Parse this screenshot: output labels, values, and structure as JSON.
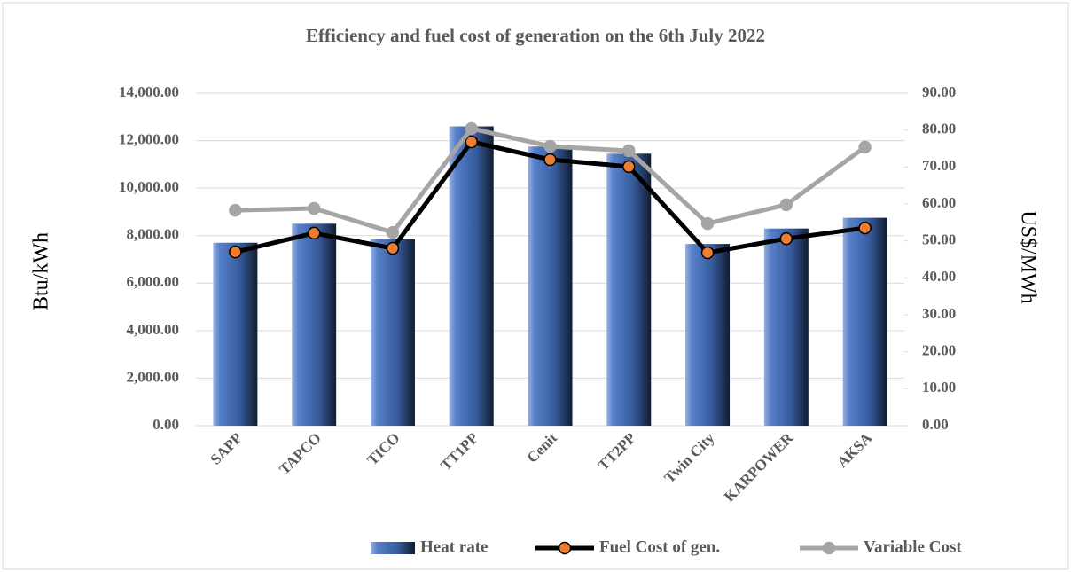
{
  "chart_data": {
    "type": "bar",
    "title": "Efficiency and fuel cost of generation on the 6th July 2022",
    "y_label": "Btu/kWh",
    "y2_label": "US$/MWh",
    "categories": [
      "SAPP",
      "TAPCO",
      "TICO",
      "TT1PP",
      "Cenit",
      "TT2PP",
      "Twin City",
      "KARPOWER",
      "AKSA"
    ],
    "series": [
      {
        "name": "Heat rate",
        "type": "bar",
        "color": "#4472c4",
        "values": [
          7700,
          8500,
          7850,
          12600,
          11750,
          11450,
          7650,
          8300,
          8750
        ]
      },
      {
        "name": "Fuel Cost of gen.",
        "type": "line",
        "axis": "y2",
        "color": "#000000",
        "marker_color": "#ed7d31",
        "values": [
          47.0,
          52.1,
          48.0,
          76.8,
          72.0,
          70.1,
          46.8,
          50.6,
          53.5
        ]
      },
      {
        "name": "Variable Cost",
        "type": "line",
        "axis": "y2",
        "color": "#a5a5a5",
        "marker_color": "#a5a5a5",
        "values": [
          58.3,
          58.8,
          52.3,
          80.4,
          75.6,
          74.4,
          54.7,
          59.8,
          75.4
        ]
      }
    ],
    "ylim": [
      0,
      14000
    ],
    "yticks": [
      {
        "value": 0,
        "label": "0.00"
      },
      {
        "value": 2000,
        "label": "2,000.00"
      },
      {
        "value": 4000,
        "label": "4,000.00"
      },
      {
        "value": 6000,
        "label": "6,000.00"
      },
      {
        "value": 8000,
        "label": "8,000.00"
      },
      {
        "value": 10000,
        "label": "10,000.00"
      },
      {
        "value": 12000,
        "label": "12,000.00"
      },
      {
        "value": 14000,
        "label": "14,000.00"
      }
    ],
    "y2lim": [
      0,
      90
    ],
    "y2ticks": [
      {
        "value": 0,
        "label": "0.00"
      },
      {
        "value": 10,
        "label": "10.00"
      },
      {
        "value": 20,
        "label": "20.00"
      },
      {
        "value": 30,
        "label": "30.00"
      },
      {
        "value": 40,
        "label": "40.00"
      },
      {
        "value": 50,
        "label": "50.00"
      },
      {
        "value": 60,
        "label": "60.00"
      },
      {
        "value": 70,
        "label": "70.00"
      },
      {
        "value": 80,
        "label": "80.00"
      },
      {
        "value": 90,
        "label": "90.00"
      }
    ],
    "grid": true,
    "legend": "bottom"
  }
}
